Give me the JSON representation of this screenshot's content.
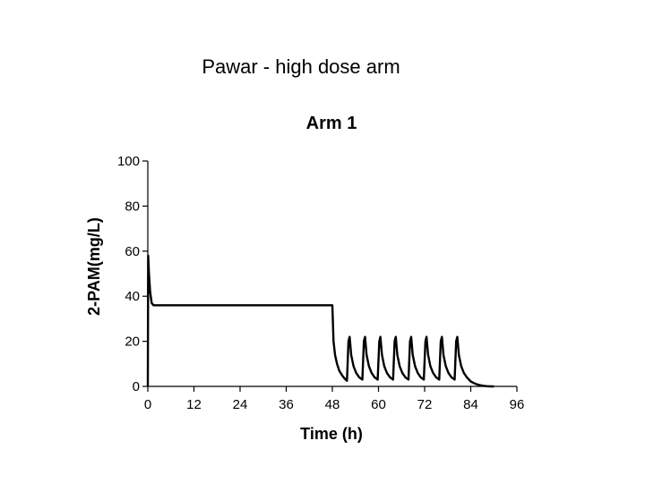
{
  "slide_title": "Pawar - high dose arm",
  "chart_data": {
    "type": "line",
    "title": "Arm 1",
    "xlabel": "Time (h)",
    "ylabel": "2-PAM(mg/L)",
    "xlim": [
      0,
      96
    ],
    "ylim": [
      0,
      100
    ],
    "xticks": [
      0,
      12,
      24,
      36,
      48,
      60,
      72,
      84,
      96
    ],
    "yticks": [
      0,
      20,
      40,
      60,
      80,
      100
    ],
    "grid": false,
    "legend": "none",
    "series": [
      {
        "color": "#000000",
        "x": [
          0,
          0.1,
          0.3,
          0.6,
          1.0,
          1.5,
          2.0,
          47.9,
          48.0,
          48.3,
          48.7,
          49.2,
          49.8,
          50.5,
          51.2,
          51.8,
          52.2,
          52.5,
          52.9,
          53.5,
          54.2,
          55.0,
          55.8,
          56.2,
          56.5,
          56.9,
          57.5,
          58.2,
          59.0,
          59.8,
          60.2,
          60.5,
          60.9,
          61.5,
          62.2,
          63.0,
          63.8,
          64.2,
          64.5,
          64.9,
          65.5,
          66.2,
          67.0,
          67.8,
          68.2,
          68.5,
          68.9,
          69.5,
          70.2,
          71.0,
          71.8,
          72.2,
          72.5,
          72.9,
          73.5,
          74.2,
          75.0,
          75.8,
          76.2,
          76.5,
          76.9,
          77.5,
          78.2,
          79.0,
          79.8,
          80.2,
          80.5,
          80.9,
          81.5,
          82.2,
          83.0,
          84.0,
          85.0,
          86.0,
          87.0,
          88.0,
          89.0,
          90.0
        ],
        "y": [
          0,
          58,
          50,
          42,
          37,
          36,
          36,
          36,
          36,
          20,
          14,
          10,
          7,
          5,
          3.5,
          2.5,
          20,
          22,
          14,
          9,
          6,
          4,
          3,
          20,
          22,
          14,
          9,
          6,
          4,
          3,
          20,
          22,
          14,
          9,
          6,
          4,
          3,
          20,
          22,
          14,
          9,
          6,
          4,
          3,
          20,
          22,
          14,
          9,
          6,
          4,
          3,
          20,
          22,
          14,
          9,
          6,
          4,
          3,
          20,
          22,
          14,
          9,
          6,
          4,
          3,
          20,
          22,
          14,
          9,
          6,
          4,
          2.2,
          1.3,
          0.7,
          0.3,
          0.1,
          0,
          0
        ]
      }
    ]
  }
}
